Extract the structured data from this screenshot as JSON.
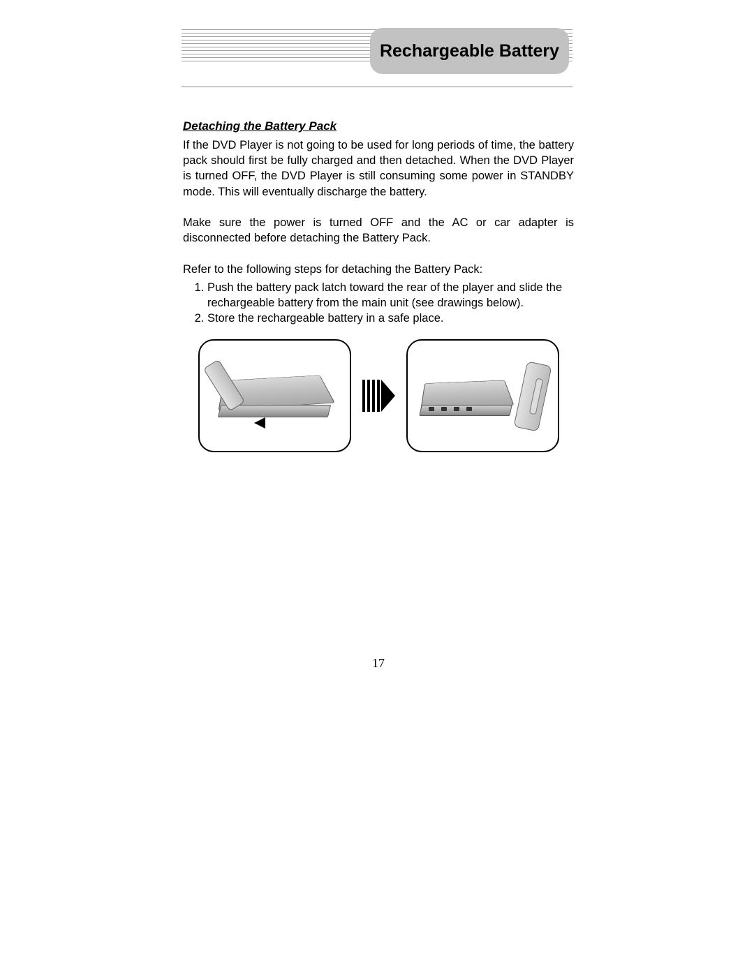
{
  "header": {
    "tab_label": "Rechargeable Battery",
    "line_count": 10,
    "line_color": "#9e9e9e",
    "tab_bg": "#c2c2c2"
  },
  "section": {
    "title": "Detaching the Battery Pack",
    "para1": "If the DVD Player is not going to be used for long periods of time, the battery pack should first be fully charged and then detached. When the DVD Player is turned OFF, the DVD Player is still consuming some power in STANDBY mode. This will eventually discharge the battery.",
    "para2": "Make sure the power is turned OFF and the AC or car adapter is disconnected before detaching the Battery Pack.",
    "para3": "Refer to the following steps for detaching the Battery Pack:",
    "steps": [
      "Push the battery pack latch toward the rear of the player and slide the rechargeable battery from the main unit (see drawings below).",
      "Store the rechargeable battery in a safe place."
    ]
  },
  "diagram": {
    "left_desc": "DVD player with battery attached, latch being pushed",
    "right_desc": "DVD player with battery detached, battery shown separate",
    "arrow_bars": 4
  },
  "page_number": "17",
  "colors": {
    "text": "#000000",
    "bg": "#ffffff"
  }
}
